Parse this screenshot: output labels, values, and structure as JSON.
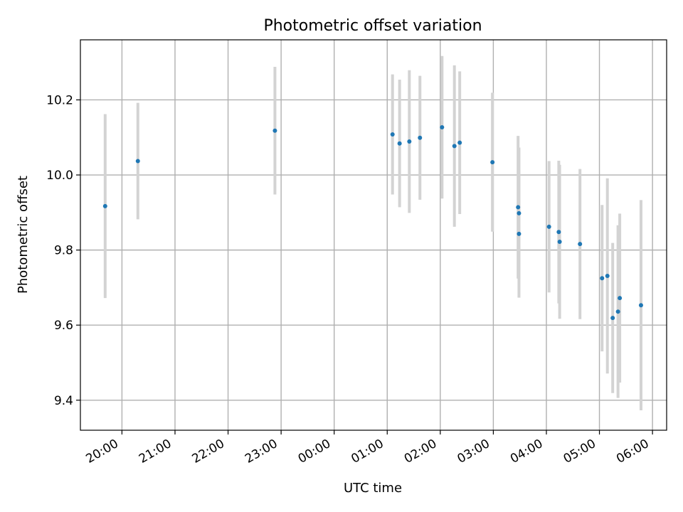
{
  "chart_data": {
    "type": "scatter",
    "title": "Photometric offset variation",
    "xlabel": "UTC time",
    "ylabel": "Photometric offset",
    "x_ticks": [
      "20:00",
      "21:00",
      "22:00",
      "23:00",
      "00:00",
      "01:00",
      "02:00",
      "03:00",
      "04:00",
      "05:00",
      "06:00"
    ],
    "x_tick_hours": [
      20,
      21,
      22,
      23,
      24,
      25,
      26,
      27,
      28,
      29,
      30
    ],
    "y_ticks": [
      "9.4",
      "9.6",
      "9.8",
      "10.0",
      "10.2"
    ],
    "y_tick_values": [
      9.4,
      9.6,
      9.8,
      10.0,
      10.2
    ],
    "xlim": [
      "19:13",
      "30:16"
    ],
    "ylim": [
      9.32,
      10.36
    ],
    "grid": true,
    "colors": {
      "point": "#1f77b4",
      "errorbar": "#d3d3d3",
      "grid": "#b0b0b0"
    },
    "points": [
      {
        "time": "19:41",
        "y": 9.917,
        "err": 0.245
      },
      {
        "time": "20:18",
        "y": 10.037,
        "err": 0.155
      },
      {
        "time": "22:53",
        "y": 10.118,
        "err": 0.17
      },
      {
        "time": "01:06",
        "y": 10.108,
        "err": 0.16
      },
      {
        "time": "01:14",
        "y": 10.084,
        "err": 0.17
      },
      {
        "time": "01:25",
        "y": 10.089,
        "err": 0.19
      },
      {
        "time": "01:37",
        "y": 10.099,
        "err": 0.165
      },
      {
        "time": "02:02",
        "y": 10.127,
        "err": 0.19
      },
      {
        "time": "02:16",
        "y": 10.077,
        "err": 0.215
      },
      {
        "time": "02:22",
        "y": 10.086,
        "err": 0.19
      },
      {
        "time": "02:59",
        "y": 10.034,
        "err": 0.185
      },
      {
        "time": "03:28",
        "y": 9.914,
        "err": 0.19
      },
      {
        "time": "03:29",
        "y": 9.898,
        "err": 0.175
      },
      {
        "time": "03:29",
        "y": 9.843,
        "err": 0.17
      },
      {
        "time": "04:03",
        "y": 9.862,
        "err": 0.175
      },
      {
        "time": "04:14",
        "y": 9.848,
        "err": 0.19
      },
      {
        "time": "04:15",
        "y": 9.822,
        "err": 0.205
      },
      {
        "time": "04:38",
        "y": 9.816,
        "err": 0.2
      },
      {
        "time": "05:03",
        "y": 9.725,
        "err": 0.195
      },
      {
        "time": "05:09",
        "y": 9.731,
        "err": 0.26
      },
      {
        "time": "05:15",
        "y": 9.619,
        "err": 0.2
      },
      {
        "time": "05:21",
        "y": 9.636,
        "err": 0.23
      },
      {
        "time": "05:23",
        "y": 9.672,
        "err": 0.225
      },
      {
        "time": "05:47",
        "y": 9.653,
        "err": 0.28
      }
    ]
  }
}
